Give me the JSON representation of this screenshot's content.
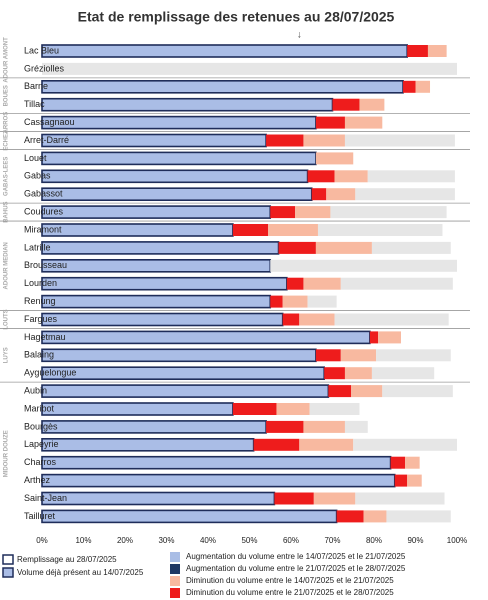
{
  "chart_data": {
    "type": "stacked_barh",
    "title": "Etat de remplissage des retenues au 28/07/2025",
    "annotation": "↓",
    "annotation_value": 62,
    "groups": [
      {
        "label": "ADOUR AMONT",
        "categories": [
          "Lac Bleu",
          "Gréziolles"
        ]
      },
      {
        "label": "BOUES",
        "categories": [
          "Barne",
          "Tillac"
        ]
      },
      {
        "label": "ARROS",
        "categories": [
          "Cassagnaou"
        ]
      },
      {
        "label": "ECHEZ",
        "categories": [
          "Arret-Darré"
        ]
      },
      {
        "label": "GABAS-LEES",
        "categories": [
          "Louet",
          "Gabas",
          "Gabassot"
        ]
      },
      {
        "label": "BAHUS",
        "categories": [
          "Coudures"
        ]
      },
      {
        "label": "ADOUR MEDIAN",
        "categories": [
          "Miramont",
          "Latrille",
          "Brousseau",
          "Lourden",
          "Renung"
        ]
      },
      {
        "label": "LOUTS",
        "categories": [
          "Fargues"
        ]
      },
      {
        "label": "LUYS",
        "categories": [
          "Hagetmau",
          "Balaing",
          "Ayguelongue"
        ]
      },
      {
        "label": "MIDOUR DOUZE",
        "categories": [
          "Aubin",
          "Maribot",
          "Bourgès",
          "Lapeyrie",
          "Charros",
          "Arthez",
          "Saint-Jean",
          "Tailluret"
        ]
      }
    ],
    "outline_label": "Remplissage au 28/07/2025",
    "outline_color": "#1f2d5a",
    "series": [
      {
        "name": "Volume déjà présent au 14/07/2025",
        "color": "#aabde6",
        "values": [
          88,
          0,
          87,
          70,
          66,
          54,
          66,
          64,
          65,
          55,
          46,
          57,
          55,
          59,
          55,
          58,
          79,
          66,
          68,
          69,
          46,
          54,
          51,
          84,
          85,
          56,
          71
        ]
      },
      {
        "name": "Augmentation du volume entre le 14/07/2025 et le 21/07/2025",
        "color": "#a9bde5",
        "values": [
          0,
          0,
          0,
          0,
          0,
          0,
          0,
          0,
          0,
          0,
          0,
          0,
          0,
          0,
          0,
          0,
          0,
          0,
          0,
          0,
          0,
          0,
          0,
          0,
          0,
          0,
          0
        ]
      },
      {
        "name": "Augmentation du volume entre le 21/07/2025 et le 28/07/2025",
        "color": "#1f3864",
        "values": [
          0,
          0,
          0,
          0,
          0,
          0,
          0,
          0,
          0,
          0,
          0,
          0,
          0,
          0,
          0,
          0,
          0,
          0,
          0,
          0,
          0,
          0,
          0,
          0,
          0,
          0,
          0
        ]
      },
      {
        "name": "Diminution du volume entre le 21/07/2025 et le 28/07/2025",
        "color": "#ee1c1c",
        "values": [
          5,
          0,
          3,
          6.5,
          7,
          9,
          0,
          6.5,
          3.5,
          6,
          8.5,
          9,
          0,
          4,
          3,
          4,
          2,
          6,
          5,
          5.5,
          10.5,
          9,
          11,
          3.5,
          3,
          9.5,
          6.5
        ]
      },
      {
        "name": "Diminution du volume entre le 14/07/2025 et le 21/07/2025",
        "color": "#f8b9a0",
        "values": [
          4.5,
          0,
          3.5,
          6,
          9,
          10,
          9,
          8,
          7,
          8.5,
          12,
          13.5,
          0,
          9,
          6,
          8.5,
          5.5,
          8.5,
          6.5,
          7.5,
          8,
          10,
          13,
          3.5,
          3.5,
          10,
          5.5
        ]
      },
      {
        "color": "#e6e6e6",
        "values": [
          0,
          100,
          0,
          0,
          0,
          26.5,
          0,
          21,
          24,
          28,
          30,
          19,
          45,
          27,
          7,
          27.5,
          0,
          18,
          15,
          17,
          12,
          5.5,
          25,
          0,
          0,
          21.5,
          15.5
        ]
      }
    ],
    "legend_order": [
      1,
      2,
      4,
      3
    ],
    "xlim": [
      0,
      100
    ],
    "xticks": [
      {
        "value": 0,
        "label": "0%"
      },
      {
        "value": 10,
        "label": "10%"
      },
      {
        "value": 20,
        "label": "20%"
      },
      {
        "value": 30,
        "label": "30%"
      },
      {
        "value": 40,
        "label": "40%"
      },
      {
        "value": 50,
        "label": "50%"
      },
      {
        "value": 60,
        "label": "60%"
      },
      {
        "value": 70,
        "label": "70%"
      },
      {
        "value": 80,
        "label": "80%"
      },
      {
        "value": 90,
        "label": "90%"
      },
      {
        "value": 100,
        "label": "100%"
      }
    ]
  }
}
